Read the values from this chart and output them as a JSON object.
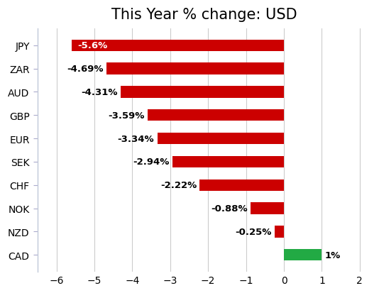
{
  "title": "This Year % change: USD",
  "categories": [
    "CAD",
    "NZD",
    "NOK",
    "CHF",
    "SEK",
    "EUR",
    "GBP",
    "AUD",
    "ZAR",
    "JPY"
  ],
  "values": [
    1.0,
    -0.25,
    -0.88,
    -2.22,
    -2.94,
    -3.34,
    -3.59,
    -4.31,
    -4.69,
    -5.6
  ],
  "labels": [
    "1%",
    "-0.25%",
    "-0.88%",
    "-2.22%",
    "-2.94%",
    "-3.34%",
    "-3.59%",
    "-4.31%",
    "-4.69%",
    "-5.6%"
  ],
  "bar_colors": [
    "#22aa44",
    "#cc0000",
    "#cc0000",
    "#cc0000",
    "#cc0000",
    "#cc0000",
    "#cc0000",
    "#cc0000",
    "#cc0000",
    "#cc0000"
  ],
  "xlim": [
    -6.5,
    2.3
  ],
  "xticks": [
    -6,
    -5,
    -4,
    -3,
    -2,
    -1,
    0,
    1,
    2
  ],
  "background_color": "#ffffff",
  "grid_color": "#cccccc",
  "title_fontsize": 15,
  "label_fontsize": 9.5,
  "tick_fontsize": 10,
  "bar_height": 0.5,
  "label_color_inside": "#ffffff",
  "label_color_outside": "#000000"
}
